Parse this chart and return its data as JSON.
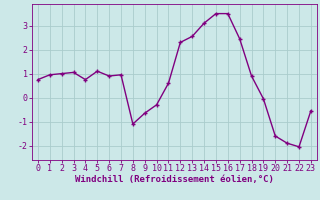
{
  "x": [
    0,
    1,
    2,
    3,
    4,
    5,
    6,
    7,
    8,
    9,
    10,
    11,
    12,
    13,
    14,
    15,
    16,
    17,
    18,
    19,
    20,
    21,
    22,
    23
  ],
  "y": [
    0.75,
    0.95,
    1.0,
    1.05,
    0.75,
    1.1,
    0.9,
    0.95,
    -1.1,
    -0.65,
    -0.3,
    0.6,
    2.3,
    2.55,
    3.1,
    3.5,
    3.5,
    2.45,
    0.9,
    -0.05,
    -1.6,
    -1.9,
    -2.05,
    -0.55
  ],
  "line_color": "#800080",
  "marker_color": "#800080",
  "bg_color": "#cce8e8",
  "grid_color": "#aacccc",
  "xlabel": "Windchill (Refroidissement éolien,°C)",
  "ylim": [
    -2.6,
    3.9
  ],
  "xlim": [
    -0.5,
    23.5
  ],
  "yticks": [
    -2,
    -1,
    0,
    1,
    2,
    3
  ],
  "xticks": [
    0,
    1,
    2,
    3,
    4,
    5,
    6,
    7,
    8,
    9,
    10,
    11,
    12,
    13,
    14,
    15,
    16,
    17,
    18,
    19,
    20,
    21,
    22,
    23
  ],
  "tick_color": "#800080",
  "label_color": "#800080",
  "font_size_xlabel": 6.5,
  "font_size_ticks": 6,
  "line_width": 1.0,
  "marker_size": 3
}
